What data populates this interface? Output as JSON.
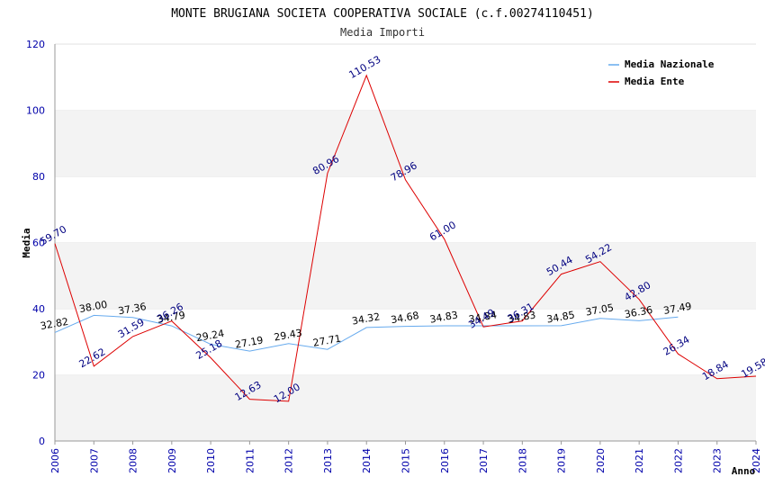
{
  "chart_data": {
    "type": "line",
    "title": "MONTE BRUGIANA SOCIETA COOPERATIVA SOCIALE (c.f.00274110451)",
    "subtitle": "Media Importi",
    "xlabel": "Anno",
    "ylabel": "Media",
    "ylim": [
      0,
      120
    ],
    "yticks": [
      "0",
      "20",
      "40",
      "60",
      "80",
      "100",
      "120"
    ],
    "categories": [
      "2006",
      "2007",
      "2008",
      "2009",
      "2010",
      "2011",
      "2012",
      "2013",
      "2014",
      "2015",
      "2016",
      "2017",
      "2018",
      "2019",
      "2020",
      "2021",
      "2022",
      "2023",
      "2024"
    ],
    "legend_position": "top-right",
    "series": [
      {
        "name": "Media Nazionale",
        "color": "#66aaee",
        "label_color": "#000000",
        "values": [
          32.82,
          38.0,
          37.36,
          34.79,
          29.24,
          27.19,
          29.43,
          27.71,
          34.32,
          34.68,
          34.83,
          34.84,
          34.83,
          34.85,
          37.05,
          36.36,
          37.49,
          null,
          null
        ],
        "labels": [
          "32.82",
          "38.00",
          "37.36",
          "34.79",
          "29.24",
          "27.19",
          "29.43",
          "27.71",
          "34.32",
          "34.68",
          "34.83",
          "34.84",
          "34.83",
          "34.85",
          "37.05",
          "36.36",
          "37.49",
          null,
          null
        ]
      },
      {
        "name": "Media Ente",
        "color": "#dd0000",
        "label_color": "#000080",
        "values": [
          59.7,
          22.62,
          31.59,
          36.26,
          25.18,
          12.63,
          12.0,
          80.96,
          110.53,
          78.96,
          61.0,
          34.49,
          36.31,
          50.44,
          54.22,
          42.8,
          26.34,
          18.84,
          19.58
        ],
        "labels": [
          "59.70",
          "22.62",
          "31.59",
          "36.26",
          "25.18",
          "12.63",
          "12.00",
          "80.96",
          "110.53",
          "78.96",
          "61.00",
          "34.49",
          "36.31",
          "50.44",
          "54.22",
          "42.80",
          "26.34",
          "18.84",
          "19.58"
        ]
      }
    ]
  }
}
